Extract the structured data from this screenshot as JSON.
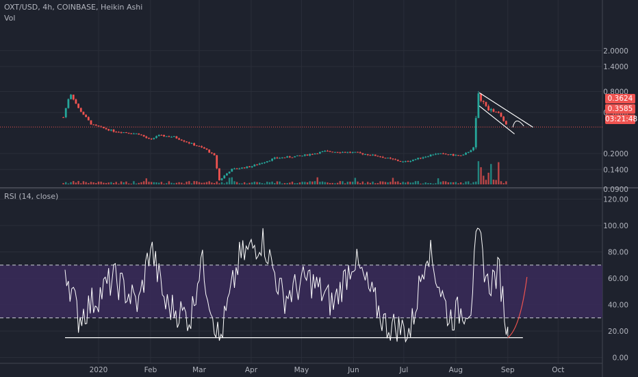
{
  "header": {
    "symbol_title": "OXT/USD, 4h, COINBASE, Heikin Ashi",
    "volume_label": "Vol",
    "rsi_label": "RSI (14, close)"
  },
  "colors": {
    "background": "#1e222d",
    "grid": "#2a2e39",
    "axis_text": "#b2b5be",
    "candle_up": "#26a69a",
    "candle_down": "#ef5350",
    "price_line": "#ef5350",
    "rsi_line": "#ffffff",
    "rsi_band": "#3a2a5a",
    "projection": "#ef5350",
    "trendline": "#ffffff",
    "countdown_badge": "#ef5350"
  },
  "price_badges": {
    "last_price": "0.3624",
    "second_price": "0.3585",
    "countdown": "03:21:48"
  },
  "chart_data": [
    {
      "type": "candlestick",
      "name": "OXT/USD price (log scale)",
      "y_scale": "log",
      "y_ticks": [
        "2.0000",
        "1.4000",
        "0.8000",
        "0.5000",
        "0.2000",
        "0.1400",
        "0.0900"
      ],
      "x_ticks": [
        "2020",
        "Feb",
        "Mar",
        "Apr",
        "May",
        "Jun",
        "Jul",
        "Aug",
        "Sep",
        "Oct"
      ],
      "approx_close_by_date": [
        {
          "x": "2019-12-11",
          "y": 0.45
        },
        {
          "x": "2019-12-15",
          "y": 0.78
        },
        {
          "x": "2019-12-20",
          "y": 0.55
        },
        {
          "x": "2019-12-28",
          "y": 0.38
        },
        {
          "x": "2020-01-10",
          "y": 0.33
        },
        {
          "x": "2020-01-25",
          "y": 0.31
        },
        {
          "x": "2020-02-01",
          "y": 0.27
        },
        {
          "x": "2020-02-05",
          "y": 0.3
        },
        {
          "x": "2020-02-15",
          "y": 0.29
        },
        {
          "x": "2020-02-25",
          "y": 0.25
        },
        {
          "x": "2020-03-05",
          "y": 0.22
        },
        {
          "x": "2020-03-10",
          "y": 0.19
        },
        {
          "x": "2020-03-13",
          "y": 0.11
        },
        {
          "x": "2020-03-20",
          "y": 0.14
        },
        {
          "x": "2020-04-01",
          "y": 0.15
        },
        {
          "x": "2020-04-15",
          "y": 0.18
        },
        {
          "x": "2020-05-01",
          "y": 0.19
        },
        {
          "x": "2020-05-15",
          "y": 0.21
        },
        {
          "x": "2020-06-01",
          "y": 0.205
        },
        {
          "x": "2020-06-15",
          "y": 0.19
        },
        {
          "x": "2020-07-01",
          "y": 0.165
        },
        {
          "x": "2020-07-10",
          "y": 0.18
        },
        {
          "x": "2020-07-20",
          "y": 0.2
        },
        {
          "x": "2020-08-05",
          "y": 0.19
        },
        {
          "x": "2020-08-12",
          "y": 0.23
        },
        {
          "x": "2020-08-14",
          "y": 0.8
        },
        {
          "x": "2020-08-17",
          "y": 0.62
        },
        {
          "x": "2020-08-22",
          "y": 0.52
        },
        {
          "x": "2020-08-27",
          "y": 0.49
        },
        {
          "x": "2020-09-01",
          "y": 0.36
        }
      ],
      "drawings": [
        "falling wedge lines from 2020-08-15 to 2020-09-16",
        "dotted horizontal line at last price 0.3624"
      ]
    },
    {
      "type": "line",
      "name": "RSI (14, close)",
      "y_ticks": [
        "120.00",
        "100.00",
        "80.00",
        "60.00",
        "40.00",
        "20.00",
        "0.00"
      ],
      "overbought": 70,
      "oversold": 30,
      "x_ticks": [
        "2020",
        "Feb",
        "Mar",
        "Apr",
        "May",
        "Jun",
        "Jul",
        "Aug",
        "Sep",
        "Oct"
      ],
      "approx_values_by_date": [
        {
          "x": "2019-12-12",
          "y": 70
        },
        {
          "x": "2019-12-20",
          "y": 30
        },
        {
          "x": "2020-01-10",
          "y": 60
        },
        {
          "x": "2020-01-25",
          "y": 40
        },
        {
          "x": "2020-02-01",
          "y": 85
        },
        {
          "x": "2020-02-10",
          "y": 40
        },
        {
          "x": "2020-02-25",
          "y": 30
        },
        {
          "x": "2020-03-02",
          "y": 75
        },
        {
          "x": "2020-03-13",
          "y": 12
        },
        {
          "x": "2020-03-25",
          "y": 75
        },
        {
          "x": "2020-04-08",
          "y": 90
        },
        {
          "x": "2020-04-20",
          "y": 45
        },
        {
          "x": "2020-05-05",
          "y": 60
        },
        {
          "x": "2020-05-20",
          "y": 40
        },
        {
          "x": "2020-06-01",
          "y": 75
        },
        {
          "x": "2020-06-20",
          "y": 25
        },
        {
          "x": "2020-07-05",
          "y": 20
        },
        {
          "x": "2020-07-15",
          "y": 85
        },
        {
          "x": "2020-07-28",
          "y": 30
        },
        {
          "x": "2020-08-10",
          "y": 40
        },
        {
          "x": "2020-08-14",
          "y": 98
        },
        {
          "x": "2020-08-20",
          "y": 55
        },
        {
          "x": "2020-08-27",
          "y": 65
        },
        {
          "x": "2020-09-01",
          "y": 16
        }
      ],
      "support_line_value": 15,
      "projection": "upward curve from about 15 to about 60, 2020-09-01 to 2020-09-05"
    }
  ]
}
